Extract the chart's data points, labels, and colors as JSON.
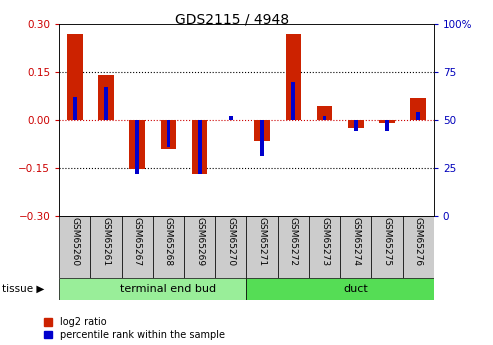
{
  "title": "GDS2115 / 4948",
  "samples": [
    "GSM65260",
    "GSM65261",
    "GSM65267",
    "GSM65268",
    "GSM65269",
    "GSM65270",
    "GSM65271",
    "GSM65272",
    "GSM65273",
    "GSM65274",
    "GSM65275",
    "GSM65276"
  ],
  "log2_ratio": [
    0.27,
    0.14,
    -0.155,
    -0.09,
    -0.17,
    0.0,
    -0.065,
    0.27,
    0.045,
    -0.025,
    -0.01,
    0.07
  ],
  "percentile": [
    0.62,
    0.67,
    0.22,
    0.36,
    0.22,
    0.52,
    0.31,
    0.7,
    0.52,
    0.44,
    0.44,
    0.54
  ],
  "ylim": [
    -0.3,
    0.3
  ],
  "yticks_left": [
    -0.3,
    -0.15,
    0.0,
    0.15,
    0.3
  ],
  "hlines_dotted": [
    0.15,
    -0.15
  ],
  "hline_zero": 0.0,
  "red_bar_width": 0.5,
  "blue_bar_width": 0.12,
  "bar_color_red": "#cc2200",
  "bar_color_blue": "#0000cc",
  "groups": [
    {
      "label": "terminal end bud",
      "start": 0,
      "end": 6,
      "color": "#99ee99"
    },
    {
      "label": "duct",
      "start": 6,
      "end": 12,
      "color": "#55dd55"
    }
  ],
  "tissue_label": "tissue ▶",
  "legend_red": "log2 ratio",
  "legend_blue": "percentile rank within the sample",
  "zero_line_color": "#cc0000",
  "right_axis_color": "#0000bb",
  "left_axis_color": "#cc0000",
  "sample_box_color": "#cccccc",
  "right_labels": [
    "0",
    "25",
    "50",
    "75",
    "100%"
  ],
  "right_positions": [
    -0.3,
    -0.15,
    0.0,
    0.15,
    0.3
  ]
}
